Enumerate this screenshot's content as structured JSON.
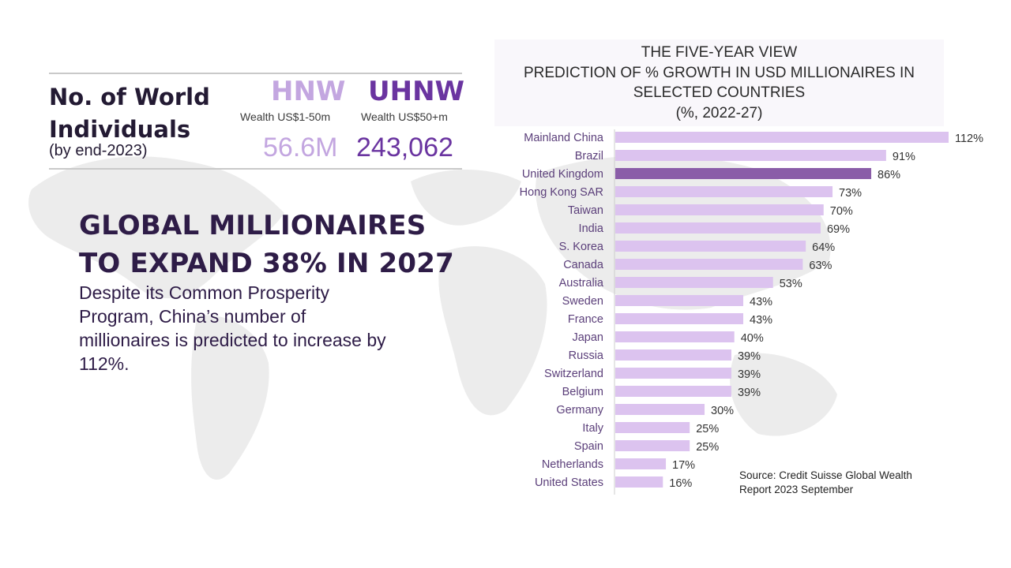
{
  "stats": {
    "title_line1": "No. of World",
    "title_line2": "Individuals",
    "subtitle": "(by end-2023)",
    "hnw": {
      "label": "HNW",
      "desc": "Wealth US$1-50m",
      "value": "56.6M",
      "color": "#c3a6e0"
    },
    "uhnw": {
      "label": "UHNW",
      "desc": "Wealth US$50+m",
      "value": "243,062",
      "color": "#6a34a0"
    }
  },
  "headline": {
    "line1": "GLOBAL MILLIONAIRES",
    "line2": "TO EXPAND 38% IN 2027"
  },
  "body": {
    "text": "Despite its Common Prosperity Program, China’s number of millionaires is predicted to increase by 112%."
  },
  "source": {
    "line1": "Source: Credit Suisse Global Wealth",
    "line2": "Report 2023 September"
  },
  "colors": {
    "bar": "#dcc3ef",
    "bar_highlight": "#8a5da8",
    "axis": "#cccccc",
    "label": "#5b3f7a",
    "value_label": "#333333"
  },
  "chart_data": {
    "type": "bar",
    "orientation": "horizontal",
    "title_lines": [
      "THE FIVE-YEAR VIEW",
      "PREDICTION OF % GROWTH IN USD MILLIONAIRES IN",
      "SELECTED COUNTRIES",
      "(%, 2022-27)"
    ],
    "categories": [
      "Mainland China",
      "Brazil",
      "United Kingdom",
      "Hong Kong SAR",
      "Taiwan",
      "India",
      "S. Korea",
      "Canada",
      "Australia",
      "Sweden",
      "France",
      "Japan",
      "Russia",
      "Switzerland",
      "Belgium",
      "Germany",
      "Italy",
      "Spain",
      "Netherlands",
      "United States"
    ],
    "values": [
      112,
      91,
      86,
      73,
      70,
      69,
      64,
      63,
      53,
      43,
      43,
      40,
      39,
      39,
      39,
      30,
      25,
      25,
      17,
      16
    ],
    "value_labels": [
      "112%",
      "91%",
      "86%",
      "73%",
      "70%",
      "69%",
      "64%",
      "63%",
      "53%",
      "43%",
      "43%",
      "40%",
      "39%",
      "39%",
      "39%",
      "30%",
      "25%",
      "25%",
      "17%",
      "16%"
    ],
    "highlight": "United Kingdom",
    "xlim": [
      0,
      112
    ],
    "grid": false,
    "legend": "none"
  }
}
